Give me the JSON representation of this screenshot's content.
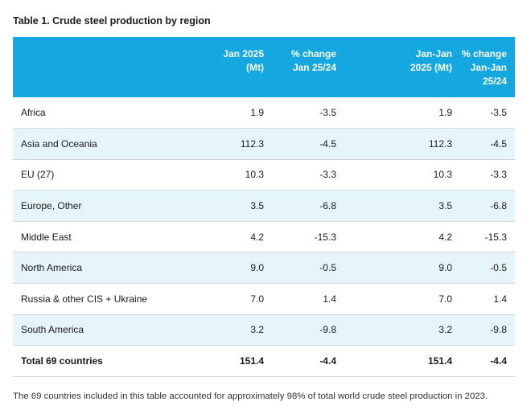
{
  "title": "Table 1. Crude steel production by region",
  "header": {
    "region": "",
    "jan_2025_line1": "Jan 2025",
    "jan_2025_line2": "(Mt)",
    "pct_change_line1": "% change",
    "pct_change_line2": "Jan 25/24",
    "janjan_line1": "Jan-Jan",
    "janjan_line2": "2025 (Mt)",
    "pct_change2_line1": "% change",
    "pct_change2_line2": "Jan-Jan",
    "pct_change2_line3": "25/24"
  },
  "rows": [
    {
      "region": "Africa",
      "jan_2025": "1.9",
      "pct_change": "-3.5",
      "janjan_2025": "1.9",
      "pct_change_janjan": "-3.5"
    },
    {
      "region": "Asia and Oceania",
      "jan_2025": "112.3",
      "pct_change": "-4.5",
      "janjan_2025": "112.3",
      "pct_change_janjan": "-4.5"
    },
    {
      "region": "EU (27)",
      "jan_2025": "10.3",
      "pct_change": "-3.3",
      "janjan_2025": "10.3",
      "pct_change_janjan": "-3.3"
    },
    {
      "region": "Europe, Other",
      "jan_2025": "3.5",
      "pct_change": "-6.8",
      "janjan_2025": "3.5",
      "pct_change_janjan": "-6.8"
    },
    {
      "region": "Middle East",
      "jan_2025": "4.2",
      "pct_change": "-15.3",
      "janjan_2025": "4.2",
      "pct_change_janjan": "-15.3"
    },
    {
      "region": "North America",
      "jan_2025": "9.0",
      "pct_change": "-0.5",
      "janjan_2025": "9.0",
      "pct_change_janjan": "-0.5"
    },
    {
      "region": "Russia & other CIS + Ukraine",
      "jan_2025": "7.0",
      "pct_change": "1.4",
      "janjan_2025": "7.0",
      "pct_change_janjan": "1.4"
    },
    {
      "region": "South America",
      "jan_2025": "3.2",
      "pct_change": "-9.8",
      "janjan_2025": "3.2",
      "pct_change_janjan": "-9.8"
    }
  ],
  "total": {
    "region": "Total 69 countries",
    "jan_2025": "151.4",
    "pct_change": "-4.4",
    "janjan_2025": "151.4",
    "pct_change_janjan": "-4.4"
  },
  "footnote": "The 69 countries included in this table accounted for approximately 98% of total world crude steel production in 2023.",
  "colors": {
    "header_bg": "#15a8e0",
    "header_text": "#ffffff",
    "alt_row_bg": "#e6f4fb",
    "row_border": "#d6d6d6"
  }
}
